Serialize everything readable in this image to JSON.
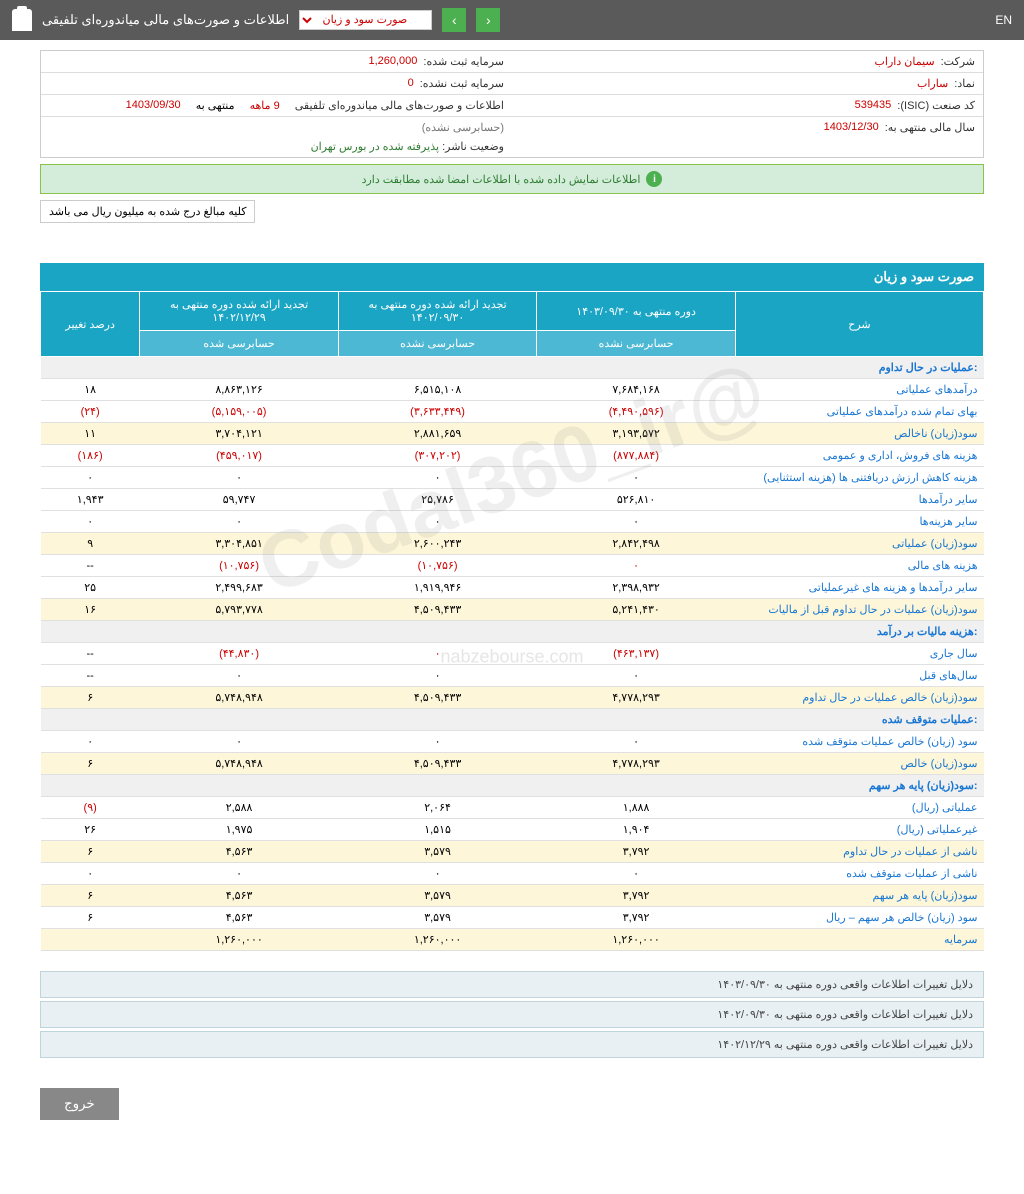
{
  "topbar": {
    "title": "اطلاعات و صورت‌های مالی میاندوره‌ای تلفیقی",
    "dropdown": "صورت سود و زیان",
    "lang": "EN"
  },
  "info": {
    "company_label": "شرکت:",
    "company": "سیمان داراب",
    "capital_reg_label": "سرمایه ثبت شده:",
    "capital_reg": "1,260,000",
    "symbol_label": "نماد:",
    "symbol": "ساراب",
    "capital_unreg_label": "سرمایه ثبت نشده:",
    "capital_unreg": "0",
    "isic_label": "کد صنعت (ISIC):",
    "isic": "539435",
    "report_label": "اطلاعات و صورت‌های مالی میاندوره‌ای تلفیقی",
    "period": "9 ماهه",
    "ending_label": "منتهی به",
    "ending": "1403/09/30",
    "audit_status": "(حسابرسی نشده)",
    "fiscal_label": "سال مالی منتهی به:",
    "fiscal": "1403/12/30",
    "publisher_label": "وضعیت ناشر:",
    "publisher": "پذیرفته شده در بورس تهران"
  },
  "notice": "اطلاعات نمایش داده شده با اطلاعات امضا شده مطابقت دارد",
  "currency_note": "کلیه مبالغ درج شده به میلیون ریال می باشد",
  "section_title": "صورت سود و زیان",
  "headers": {
    "desc": "شرح",
    "c1": "دوره منتهی به ۱۴۰۳/۰۹/۳۰",
    "c2": "تجدید ارائه شده دوره منتهی به ۱۴۰۲/۰۹/۳۰",
    "c3": "تجدید ارائه شده دوره منتهی به ۱۴۰۲/۱۲/۲۹",
    "pct": "درصد تغییر",
    "unaudited": "حسابرسی نشده",
    "audited": "حسابرسی شده"
  },
  "rows": [
    {
      "type": "section",
      "label": "عملیات در حال تداوم:"
    },
    {
      "label": "درآمدهای عملیاتی",
      "c1": "۷,۶۸۴,۱۶۸",
      "c2": "۶,۵۱۵,۱۰۸",
      "c3": "۸,۸۶۳,۱۲۶",
      "pct": "۱۸",
      "yellow": false
    },
    {
      "label": "بهای تمام شده درآمدهای عملیاتی",
      "c1": "(۴,۴۹۰,۵۹۶)",
      "c2": "(۳,۶۳۳,۴۴۹)",
      "c3": "(۵,۱۵۹,۰۰۵)",
      "pct": "(۲۴)",
      "neg": true
    },
    {
      "label": "سود(زیان) ناخالص",
      "c1": "۳,۱۹۳,۵۷۲",
      "c2": "۲,۸۸۱,۶۵۹",
      "c3": "۳,۷۰۴,۱۲۱",
      "pct": "۱۱",
      "yellow": true
    },
    {
      "label": "هزینه های فروش، اداری و عمومی",
      "c1": "(۸۷۷,۸۸۴)",
      "c2": "(۳۰۷,۲۰۲)",
      "c3": "(۴۵۹,۰۱۷)",
      "pct": "(۱۸۶)",
      "neg": true
    },
    {
      "label": "هزینه کاهش ارزش دریافتنی ها (هزینه استثنایی)",
      "c1": "۰",
      "c2": "۰",
      "c3": "۰",
      "pct": "۰"
    },
    {
      "label": "سایر درآمدها",
      "c1": "۵۲۶,۸۱۰",
      "c2": "۲۵,۷۸۶",
      "c3": "۵۹,۷۴۷",
      "pct": "۱,۹۴۳"
    },
    {
      "label": "سایر هزینه‌ها",
      "c1": "۰",
      "c2": "۰",
      "c3": "۰",
      "pct": "۰"
    },
    {
      "label": "سود(زیان) عملیاتی",
      "c1": "۲,۸۴۲,۴۹۸",
      "c2": "۲,۶۰۰,۲۴۳",
      "c3": "۳,۳۰۴,۸۵۱",
      "pct": "۹",
      "yellow": true
    },
    {
      "label": "هزینه های مالی",
      "c1": "۰",
      "c2": "(۱۰,۷۵۶)",
      "c3": "(۱۰,۷۵۶)",
      "pct": "--",
      "neg": true
    },
    {
      "label": "سایر درآمدها و هزینه های غیرعملیاتی",
      "c1": "۲,۳۹۸,۹۳۲",
      "c2": "۱,۹۱۹,۹۴۶",
      "c3": "۲,۴۹۹,۶۸۳",
      "pct": "۲۵"
    },
    {
      "label": "سود(زیان) عملیات در حال تداوم قبل از مالیات",
      "c1": "۵,۲۴۱,۴۳۰",
      "c2": "۴,۵۰۹,۴۳۳",
      "c3": "۵,۷۹۳,۷۷۸",
      "pct": "۱۶",
      "yellow": true
    },
    {
      "type": "section",
      "label": "هزینه مالیات بر درآمد:"
    },
    {
      "label": "سال جاری",
      "c1": "(۴۶۳,۱۳۷)",
      "c2": "۰",
      "c3": "(۴۴,۸۳۰)",
      "pct": "--",
      "neg": true
    },
    {
      "label": "سال‌های قبل",
      "c1": "۰",
      "c2": "۰",
      "c3": "۰",
      "pct": "--"
    },
    {
      "label": "سود(زیان) خالص عملیات در حال تداوم",
      "c1": "۴,۷۷۸,۲۹۳",
      "c2": "۴,۵۰۹,۴۳۳",
      "c3": "۵,۷۴۸,۹۴۸",
      "pct": "۶",
      "yellow": true
    },
    {
      "type": "section",
      "label": "عملیات متوقف شده:"
    },
    {
      "label": "سود (زیان) خالص عملیات متوقف شده",
      "c1": "۰",
      "c2": "۰",
      "c3": "۰",
      "pct": "۰"
    },
    {
      "label": "سود(زیان) خالص",
      "c1": "۴,۷۷۸,۲۹۳",
      "c2": "۴,۵۰۹,۴۳۳",
      "c3": "۵,۷۴۸,۹۴۸",
      "pct": "۶",
      "yellow": true
    },
    {
      "type": "section",
      "label": "سود(زیان) پایه هر سهم:"
    },
    {
      "label": "عملیاتی (ریال)",
      "c1": "۱,۸۸۸",
      "c2": "۲,۰۶۴",
      "c3": "۲,۵۸۸",
      "pct": "(۹)",
      "pctneg": true
    },
    {
      "label": "غیرعملیاتی (ریال)",
      "c1": "۱,۹۰۴",
      "c2": "۱,۵۱۵",
      "c3": "۱,۹۷۵",
      "pct": "۲۶"
    },
    {
      "label": "ناشی از عملیات در حال تداوم",
      "c1": "۳,۷۹۲",
      "c2": "۳,۵۷۹",
      "c3": "۴,۵۶۳",
      "pct": "۶",
      "yellow": true
    },
    {
      "label": "ناشی از عملیات متوقف شده",
      "c1": "۰",
      "c2": "۰",
      "c3": "۰",
      "pct": "۰"
    },
    {
      "label": "سود(زیان) پایه هر سهم",
      "c1": "۳,۷۹۲",
      "c2": "۳,۵۷۹",
      "c3": "۴,۵۶۳",
      "pct": "۶",
      "yellow": true
    },
    {
      "label": "سود (زیان) خالص هر سهم – ریال",
      "c1": "۳,۷۹۲",
      "c2": "۳,۵۷۹",
      "c3": "۴,۵۶۳",
      "pct": "۶"
    },
    {
      "label": "سرمایه",
      "c1": "۱,۲۶۰,۰۰۰",
      "c2": "۱,۲۶۰,۰۰۰",
      "c3": "۱,۲۶۰,۰۰۰",
      "pct": "",
      "yellow": true
    }
  ],
  "reasons": [
    "دلایل تغییرات اطلاعات واقعی دوره منتهی به ۱۴۰۳/۰۹/۳۰",
    "دلایل تغییرات اطلاعات واقعی دوره منتهی به ۱۴۰۲/۰۹/۳۰",
    "دلایل تغییرات اطلاعات واقعی دوره منتهی به ۱۴۰۲/۱۲/۲۹"
  ],
  "exit": "خروج",
  "watermark1": "@Codal360_ir",
  "watermark2": "nabzebourse.com"
}
